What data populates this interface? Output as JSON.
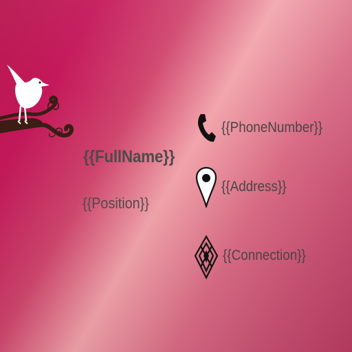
{
  "card": {
    "full_name": "{{FullName}}",
    "position": "{{Position}}",
    "phone": "{{PhoneNumber}}",
    "address": "{{Address}}",
    "connection": "{{Connection}}"
  },
  "icons": {
    "bird": "bird-on-branch-icon",
    "phone": "phone-icon",
    "address": "map-pin-icon",
    "connection": "diamond-knot-icon"
  },
  "colors": {
    "background_deep": "#c4185a",
    "background_light": "#f2a4ab",
    "text": "#4f4a4a",
    "branch": "#3b1d14",
    "bird": "#ffffff"
  }
}
